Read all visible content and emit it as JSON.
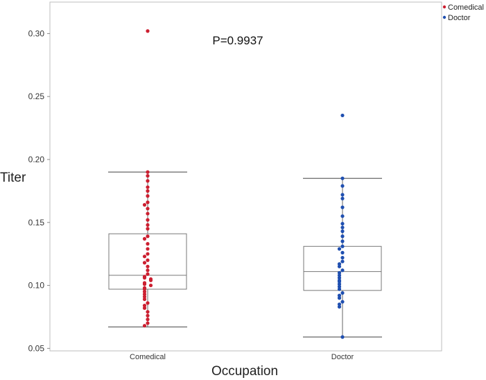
{
  "chart_data": {
    "type": "scatter",
    "subtype": "box-plot-with-jittered-points",
    "xlabel": "Occupation",
    "ylabel": "Titer",
    "annotation": "P=0.9937",
    "categories": [
      "Comedical",
      "Doctor"
    ],
    "y_ticks": [
      "0.05",
      "0.10",
      "0.15",
      "0.20",
      "0.25",
      "0.30"
    ],
    "ylim": [
      0.048,
      0.325
    ],
    "grid": false,
    "legend_position": "top-right",
    "series": [
      {
        "name": "Comedical",
        "color": "#cc1f30",
        "box": {
          "whisker_low": 0.067,
          "q1": 0.097,
          "median": 0.108,
          "q3": 0.141,
          "whisker_high": 0.19
        },
        "values": [
          0.302,
          0.19,
          0.187,
          0.183,
          0.178,
          0.175,
          0.171,
          0.166,
          0.164,
          0.161,
          0.157,
          0.152,
          0.148,
          0.145,
          0.139,
          0.137,
          0.133,
          0.129,
          0.125,
          0.123,
          0.12,
          0.118,
          0.115,
          0.112,
          0.109,
          0.107,
          0.106,
          0.105,
          0.104,
          0.102,
          0.101,
          0.1,
          0.098,
          0.097,
          0.095,
          0.093,
          0.091,
          0.089,
          0.086,
          0.084,
          0.082,
          0.079,
          0.076,
          0.073,
          0.07,
          0.068
        ]
      },
      {
        "name": "Doctor",
        "color": "#1f4fb0",
        "box": {
          "whisker_low": 0.059,
          "q1": 0.096,
          "median": 0.111,
          "q3": 0.131,
          "whisker_high": 0.185
        },
        "values": [
          0.235,
          0.185,
          0.179,
          0.172,
          0.169,
          0.162,
          0.155,
          0.149,
          0.146,
          0.143,
          0.139,
          0.135,
          0.131,
          0.129,
          0.126,
          0.122,
          0.119,
          0.117,
          0.115,
          0.112,
          0.11,
          0.108,
          0.106,
          0.104,
          0.103,
          0.101,
          0.099,
          0.097,
          0.094,
          0.092,
          0.09,
          0.087,
          0.085,
          0.083,
          0.059
        ]
      }
    ]
  }
}
